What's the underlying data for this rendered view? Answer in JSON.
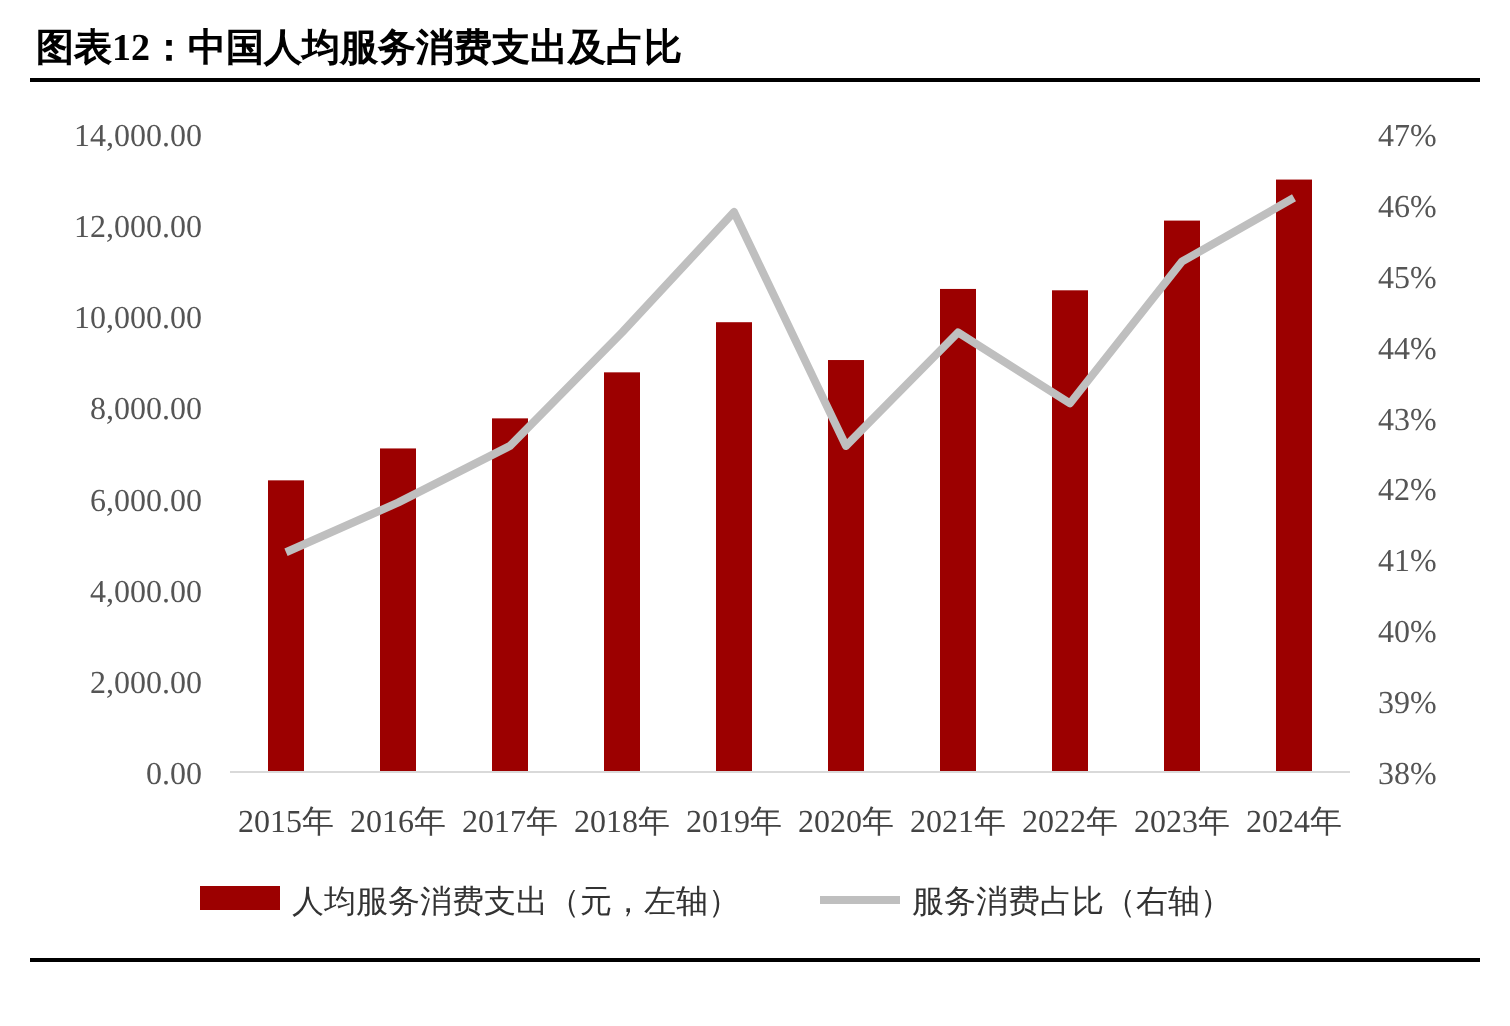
{
  "chart_data": {
    "type": "bar",
    "title": "图表12：中国人均服务消费支出及占比",
    "categories": [
      "2015年",
      "2016年",
      "2017年",
      "2018年",
      "2019年",
      "2020年",
      "2021年",
      "2022年",
      "2023年",
      "2024年"
    ],
    "series": [
      {
        "name": "人均服务消费支出（元，左轴）",
        "color": "#9c0000",
        "values": [
          6400,
          7100,
          7760,
          8770,
          9870,
          9040,
          10600,
          10570,
          12100,
          13000
        ]
      },
      {
        "name": "服务消费占比（右轴）",
        "type": "line",
        "axis": "y2",
        "color": "#bfbfbf",
        "values": [
          41.1,
          41.8,
          42.6,
          44.2,
          45.9,
          42.6,
          44.2,
          43.2,
          45.2,
          46.1
        ]
      }
    ],
    "ylim": [
      0,
      14000
    ],
    "yticks": [
      {
        "value": 0,
        "label": "0.00"
      },
      {
        "value": 2000,
        "label": "2,000.00"
      },
      {
        "value": 4000,
        "label": "4,000.00"
      },
      {
        "value": 6000,
        "label": "6,000.00"
      },
      {
        "value": 8000,
        "label": "8,000.00"
      },
      {
        "value": 10000,
        "label": "10,000.00"
      },
      {
        "value": 12000,
        "label": "12,000.00"
      },
      {
        "value": 14000,
        "label": "14,000.00"
      }
    ],
    "y2lim": [
      38,
      47
    ],
    "y2ticks": [
      {
        "value": 38,
        "label": "38%"
      },
      {
        "value": 39,
        "label": "39%"
      },
      {
        "value": 40,
        "label": "40%"
      },
      {
        "value": 41,
        "label": "41%"
      },
      {
        "value": 42,
        "label": "42%"
      },
      {
        "value": 43,
        "label": "43%"
      },
      {
        "value": 44,
        "label": "44%"
      },
      {
        "value": 45,
        "label": "45%"
      },
      {
        "value": 46,
        "label": "46%"
      },
      {
        "value": 47,
        "label": "47%"
      }
    ],
    "legend": "bottom"
  }
}
